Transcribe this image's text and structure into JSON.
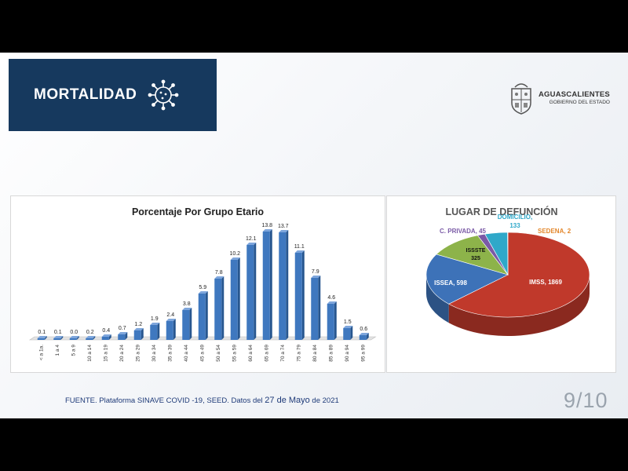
{
  "header": {
    "title": "MORTALIDAD",
    "icon": "virus-icon"
  },
  "logo": {
    "line1": "AGUASCALIENTES",
    "line2": "GOBIERNO DEL ESTADO",
    "icon": "coat-of-arms-icon"
  },
  "footer": {
    "source_prefix": "FUENTE. Plataforma SINAVE COVID -19, SEED. Datos del ",
    "source_date": "27 de Mayo",
    "source_suffix": " de 2021"
  },
  "page_number": "9/10",
  "chart_data": [
    {
      "type": "bar",
      "title": "Porcentaje Por Grupo Etario",
      "categories": [
        "< a 1a.",
        "1 a 4",
        "5 a 9",
        "10 a 14",
        "15 a 19",
        "20 a 24",
        "25 a 29",
        "30 a 34",
        "35 a 39",
        "40 a 44",
        "45 a 49",
        "50 a 54",
        "55 a 59",
        "60 a 64",
        "65 a 69",
        "70 a 74",
        "75 a 79",
        "80 a 84",
        "85 a 89",
        "90 a 94",
        "95 a 99"
      ],
      "values": [
        0.1,
        0.1,
        0.0,
        0.2,
        0.4,
        0.7,
        1.2,
        1.9,
        2.4,
        3.8,
        5.9,
        7.8,
        10.2,
        12.1,
        13.8,
        13.7,
        11.1,
        7.9,
        4.6,
        1.5,
        0.6
      ],
      "value_labels": [
        "0.1",
        "0.1",
        "0.0",
        "0.2",
        "0.4",
        "0.7",
        "1.2",
        "1.9",
        "2.4",
        "3.8",
        "5.9",
        "7.8",
        "10.2",
        "12.1",
        "13.8",
        "13.7",
        "11.1",
        "7.9",
        "4.6",
        "1.5",
        "0.6"
      ],
      "ylim": [
        0,
        15
      ],
      "grid": false,
      "legend": "none",
      "color": "#3f78bf"
    },
    {
      "type": "pie",
      "title": "LUGAR DE DEFUNCIÓN",
      "slices": [
        {
          "label": "IMSS",
          "value": 1869,
          "text": "IMSS, 1869",
          "color": "#c0392b"
        },
        {
          "label": "ISSEA",
          "value": 598,
          "text": "ISSEA, 598",
          "color": "#3d72b8"
        },
        {
          "label": "ISSSTE",
          "value": 325,
          "text_line1": "ISSSTE",
          "text_line2": "325",
          "color": "#8db34a"
        },
        {
          "label": "C. PRIVADA",
          "value": 45,
          "text": "C. PRIVADA, 45",
          "color": "#7a5aa6"
        },
        {
          "label": "DOMICILIO",
          "value": 133,
          "text_line1": "DOMICILIO,",
          "text_line2": "133",
          "color": "#2fa8c9"
        },
        {
          "label": "SEDENA",
          "value": 2,
          "text": "SEDENA, 2",
          "color": "#e3862a"
        }
      ],
      "three_d": true,
      "legend": "none"
    }
  ]
}
